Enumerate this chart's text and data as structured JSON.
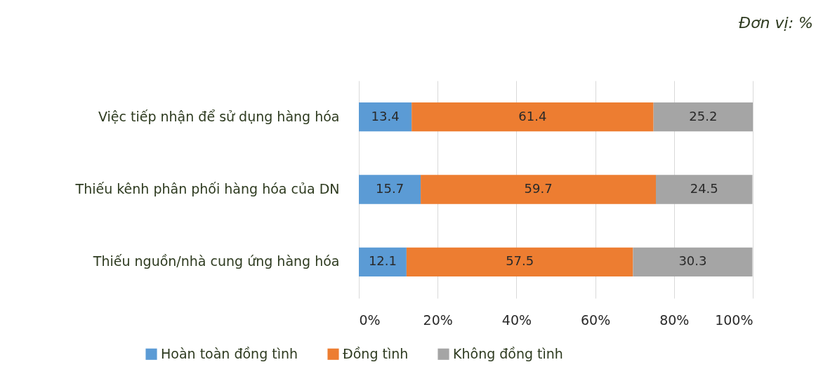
{
  "chart_data": {
    "type": "bar",
    "orientation": "horizontal",
    "stacked": true,
    "annotations": [
      "Đơn vị: %"
    ],
    "categories": [
      "Việc tiếp nhận để sử dụng hàng hóa",
      "Thiếu kênh phân phối hàng hóa của DN",
      "Thiếu nguồn/nhà cung ứng hàng hóa"
    ],
    "series": [
      {
        "name": "Hoàn toàn đồng tình",
        "color": "#5b9bd5",
        "values": [
          13.4,
          15.7,
          12.1
        ]
      },
      {
        "name": "Đồng tình",
        "color": "#ed7d31",
        "values": [
          61.4,
          59.7,
          57.5
        ]
      },
      {
        "name": "Không đồng tình",
        "color": "#a5a5a5",
        "values": [
          25.2,
          24.5,
          30.3
        ]
      }
    ],
    "xlim": [
      0,
      100
    ],
    "xticks": [
      {
        "value": 0,
        "label": "0%"
      },
      {
        "value": 20,
        "label": "20%"
      },
      {
        "value": 40,
        "label": "40%"
      },
      {
        "value": 60,
        "label": "60%"
      },
      {
        "value": 80,
        "label": "80%"
      },
      {
        "value": 100,
        "label": "100%"
      }
    ],
    "grid": "x",
    "legend": "bottom",
    "data_labels": true
  }
}
